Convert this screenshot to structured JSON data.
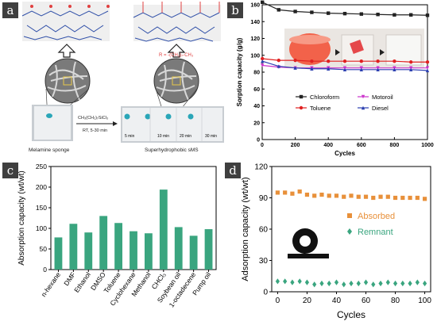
{
  "panel_a": {
    "label": "a",
    "r_formula": "R = -(CH₂)₇-CH₃",
    "reagent": "CH₃(CH₂)₇SiCl₃",
    "conditions": "RT, 5-30 min",
    "left_caption": "Melamine sponge",
    "right_caption": "Superhydrophobic sMS",
    "times": [
      "5 min",
      "10 min",
      "20 min",
      "30 min"
    ],
    "colors": {
      "sponge": "#eef0f2",
      "droplet": "#2aa6b8",
      "chain": "#2f4fa8",
      "r_group": "#e04040"
    }
  },
  "chart_data": [
    {
      "panel": "b",
      "type": "line",
      "x": [
        1,
        100,
        200,
        300,
        400,
        500,
        600,
        700,
        800,
        900,
        1000
      ],
      "xlabel": "Cycles",
      "ylabel": "Sorption capacity (g/g)",
      "xlim": [
        0,
        1000
      ],
      "ylim": [
        0,
        160
      ],
      "xticks": [
        0,
        200,
        400,
        600,
        800,
        1000
      ],
      "yticks": [
        0,
        20,
        40,
        60,
        80,
        100,
        120,
        140,
        160
      ],
      "legend": "bottom",
      "series": [
        {
          "name": "Chloroform",
          "color": "#222222",
          "marker": "square",
          "values": [
            163,
            154,
            152,
            151,
            150,
            149.5,
            149,
            148.5,
            148,
            148,
            147.5
          ]
        },
        {
          "name": "Motoroil",
          "color": "#cc33cc",
          "marker": "triangle-down",
          "values": [
            88,
            86,
            85,
            85,
            85,
            85,
            85,
            85,
            85,
            85,
            85
          ]
        },
        {
          "name": "Toluene",
          "color": "#e02020",
          "marker": "circle",
          "values": [
            96,
            94,
            94,
            93,
            93,
            93,
            93,
            93,
            93,
            92,
            92
          ]
        },
        {
          "name": "Diesel",
          "color": "#2b3fb0",
          "marker": "triangle-up",
          "values": [
            93,
            87,
            85,
            84,
            84,
            83,
            83,
            83,
            83,
            83,
            82
          ]
        }
      ]
    },
    {
      "panel": "c",
      "type": "bar",
      "categories": [
        "n-hexane",
        "DMF",
        "Ethanol",
        "DMSO",
        "Toluene",
        "Cyclohexane",
        "Methanol",
        "CHCl₃",
        "Soybean oil",
        "1-octadecene",
        "Pump oil"
      ],
      "values": [
        78,
        111,
        90,
        130,
        113,
        93,
        88,
        194,
        103,
        82,
        98
      ],
      "ylabel": "Absorption capacity (wt/wt)",
      "ylim": [
        0,
        250
      ],
      "yticks": [
        0,
        50,
        100,
        150,
        200,
        250
      ],
      "color": "#3aa57f"
    },
    {
      "panel": "d",
      "type": "scatter",
      "x": [
        0,
        5,
        10,
        15,
        20,
        25,
        30,
        35,
        40,
        45,
        50,
        55,
        60,
        65,
        70,
        75,
        80,
        85,
        90,
        95,
        100
      ],
      "xlabel": "Cycles",
      "ylabel": "Adsorption capacity (wt/wt)",
      "xlim": [
        -4,
        104
      ],
      "ylim": [
        0,
        120
      ],
      "xticks": [
        0,
        20,
        40,
        60,
        80,
        100
      ],
      "yticks": [
        0,
        30,
        60,
        90,
        120
      ],
      "legend": "right",
      "series": [
        {
          "name": "Absorbed",
          "color": "#e8903a",
          "marker": "square",
          "values": [
            95,
            95,
            94,
            96,
            93,
            92,
            93,
            92,
            92,
            91,
            92,
            91,
            91,
            90,
            91,
            91,
            90,
            90,
            90,
            90,
            89
          ]
        },
        {
          "name": "Remnant",
          "color": "#3aa57f",
          "marker": "diamond",
          "values": [
            10,
            10,
            9,
            10,
            9,
            7,
            8,
            8,
            9,
            7,
            8,
            8,
            9,
            7,
            8,
            9,
            8,
            8,
            8,
            9,
            8
          ]
        }
      ]
    }
  ],
  "panel_labels": {
    "b": "b",
    "c": "c",
    "d": "d"
  }
}
